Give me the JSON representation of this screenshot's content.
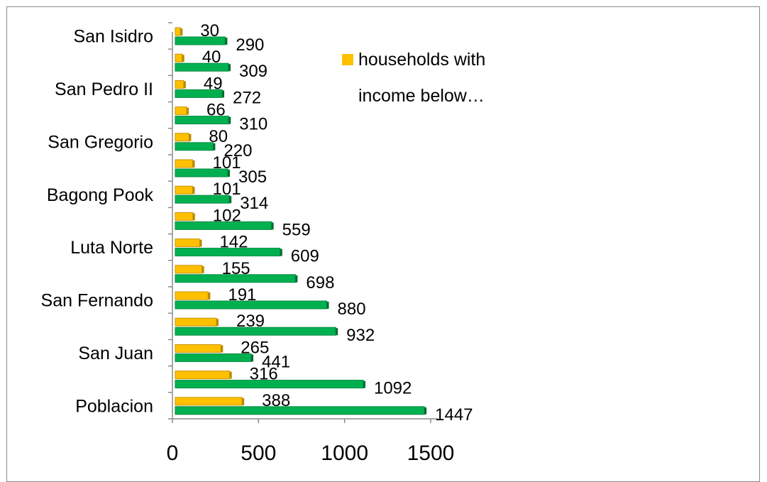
{
  "chart_data": {
    "type": "bar",
    "orientation": "horizontal",
    "categories": [
      "Poblacion",
      "",
      "San Juan",
      "",
      "San Fernando",
      "",
      "Luta Norte",
      "",
      "Bagong Pook",
      "",
      "San Gregorio",
      "",
      "San Pedro II",
      "",
      "San Isidro"
    ],
    "series": [
      {
        "name": "households with income below…",
        "color": "#FFC000",
        "values": [
          388,
          316,
          265,
          239,
          191,
          155,
          142,
          102,
          101,
          101,
          80,
          66,
          49,
          40,
          30
        ],
        "labels": [
          "388",
          "316",
          "265",
          "239",
          "191",
          "155",
          "142",
          "102",
          "101",
          "101",
          "80",
          "66",
          "49",
          "40",
          "30"
        ]
      },
      {
        "color": "#00B050",
        "values": [
          1447,
          1092,
          441,
          932,
          880,
          698,
          609,
          559,
          314,
          305,
          220,
          310,
          272,
          309,
          290
        ],
        "labels": [
          "1447",
          "1092",
          "441",
          "932",
          "880",
          "698",
          "609",
          "559",
          "314",
          "305",
          "220",
          "310",
          "272",
          "309",
          "290"
        ]
      }
    ],
    "xlim": [
      0,
      1500
    ],
    "x_ticks": [
      0,
      500,
      1000,
      1500
    ],
    "x_tick_labels": [
      "0",
      "500",
      "1000",
      "1500"
    ],
    "legend": {
      "position": "top-right",
      "entries": [
        "households with",
        "income below…"
      ]
    },
    "grid": false
  }
}
